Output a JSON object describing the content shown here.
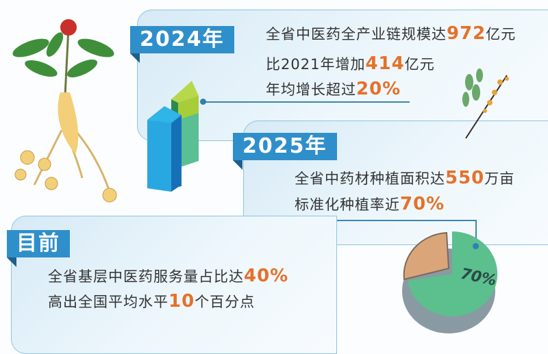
{
  "sections": [
    {
      "label": "2024年",
      "lines": [
        {
          "pre": "全省中医药全产业链规模达",
          "num": "972",
          "post": "亿元"
        },
        {
          "pre": "比2021年增加",
          "num": "414",
          "post": "亿元"
        },
        {
          "pre": "年均增长超过",
          "num": "20%",
          "post": ""
        }
      ]
    },
    {
      "label": "2025年",
      "lines": [
        {
          "pre": "全省中药材种植面积达",
          "num": "550",
          "post": "万亩"
        },
        {
          "pre": "标准化种植率近",
          "num": "70%",
          "post": ""
        }
      ]
    },
    {
      "label": "目前",
      "lines": [
        {
          "pre": "全省基层中医药服务量占比达",
          "num": "40%",
          "post": ""
        },
        {
          "pre": "高出全国平均水平",
          "num": "10",
          "post": "个百分点"
        }
      ]
    }
  ],
  "pie": {
    "label": "70%",
    "share": 70
  },
  "colors": {
    "tab": "#2f8fca",
    "highlight": "#e5712a",
    "pie_main": "#5cbf8e",
    "pie_rest": "#dba57a"
  }
}
